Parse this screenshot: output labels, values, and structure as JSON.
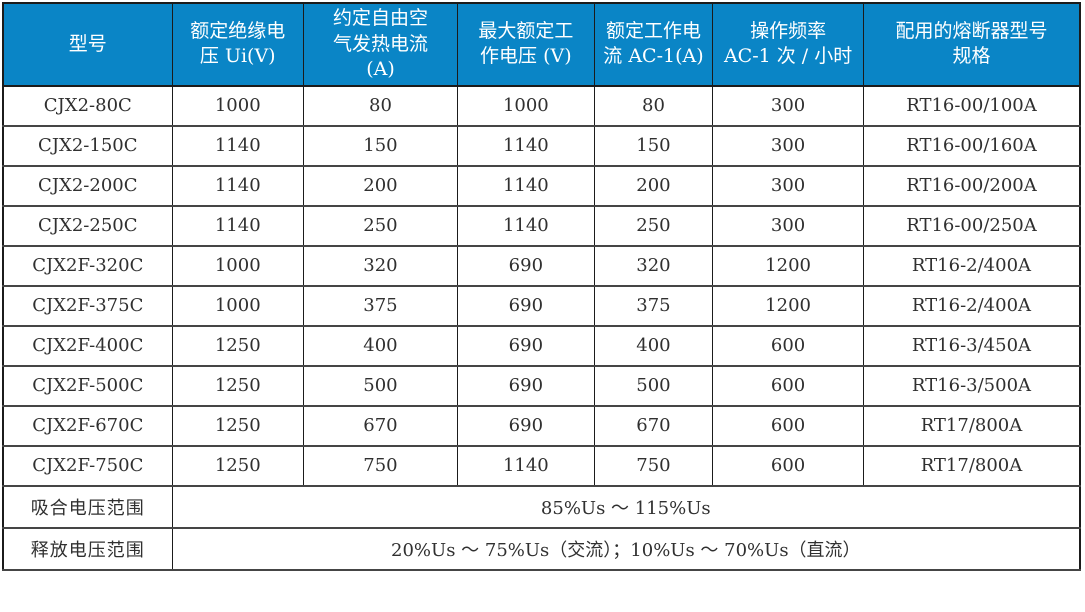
{
  "table": {
    "title_semantic": "CJX2 / CJX2F contactor technical specification table",
    "colors": {
      "header_bg": "#0a85c6",
      "header_text": "#ffffff",
      "body_text": "#303030",
      "grid_line": "#1b1b1b",
      "row_separator": "#454545"
    },
    "headers": [
      "型号",
      "额定绝缘电\n压 Ui(V)",
      "约定自由空\n气发热电流\n(A)",
      "最大额定工\n作电压 (V)",
      "额定工作电\n流 AC-1(A)",
      "操作频率\nAC-1 次 / 小时",
      "配用的熔断器型号\n规格"
    ],
    "rows": [
      [
        "CJX2-80C",
        "1000",
        "80",
        "1000",
        "80",
        "300",
        "RT16-00/100A"
      ],
      [
        "CJX2-150C",
        "1140",
        "150",
        "1140",
        "150",
        "300",
        "RT16-00/160A"
      ],
      [
        "CJX2-200C",
        "1140",
        "200",
        "1140",
        "200",
        "300",
        "RT16-00/200A"
      ],
      [
        "CJX2-250C",
        "1140",
        "250",
        "1140",
        "250",
        "300",
        "RT16-00/250A"
      ],
      [
        "CJX2F-320C",
        "1000",
        "320",
        "690",
        "320",
        "1200",
        "RT16-2/400A"
      ],
      [
        "CJX2F-375C",
        "1000",
        "375",
        "690",
        "375",
        "1200",
        "RT16-2/400A"
      ],
      [
        "CJX2F-400C",
        "1250",
        "400",
        "690",
        "400",
        "600",
        "RT16-3/450A"
      ],
      [
        "CJX2F-500C",
        "1250",
        "500",
        "690",
        "500",
        "600",
        "RT16-3/500A"
      ],
      [
        "CJX2F-670C",
        "1250",
        "670",
        "690",
        "670",
        "600",
        "RT17/800A"
      ],
      [
        "CJX2F-750C",
        "1250",
        "750",
        "1140",
        "750",
        "600",
        "RT17/800A"
      ]
    ],
    "footer": [
      {
        "label": "吸合电压范围",
        "value": "85%Us ～ 115%Us"
      },
      {
        "label": "释放电压范围",
        "value": "20%Us ～ 75%Us（交流）；10%Us ～ 70%Us（直流）"
      }
    ]
  }
}
